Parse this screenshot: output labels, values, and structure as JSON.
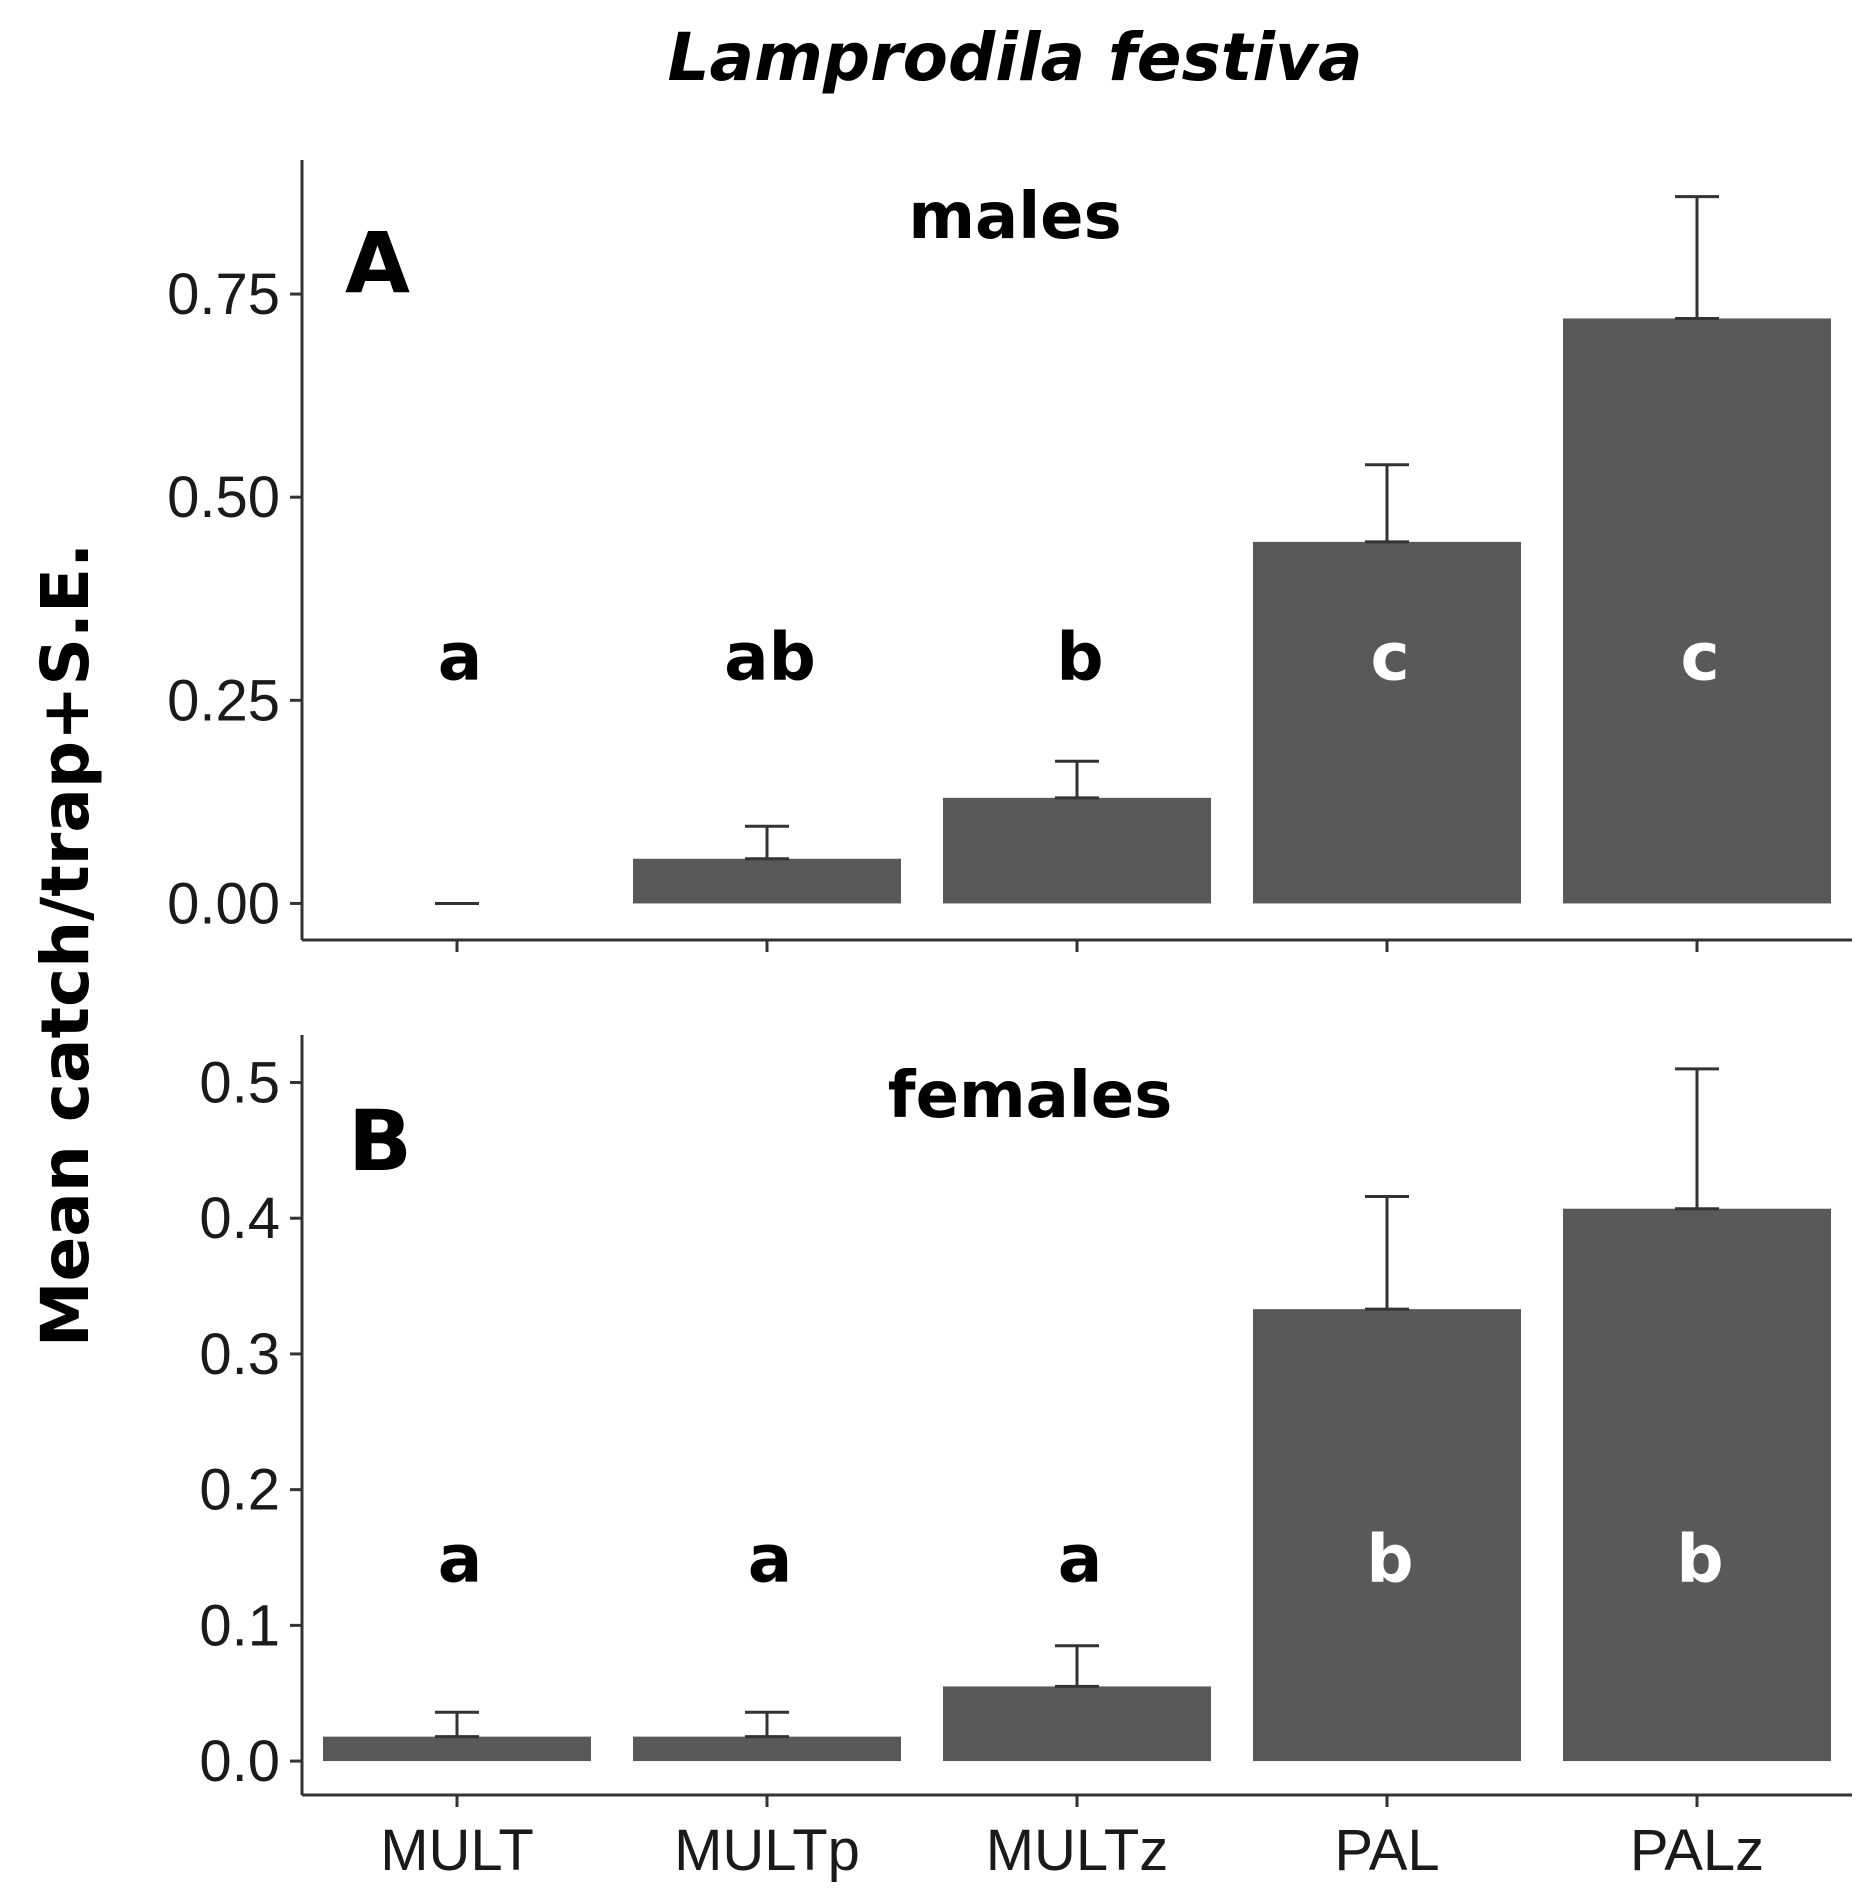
{
  "figure": {
    "title": "Lamprodila festiva",
    "ylabel": "Mean catch/trap+S.E."
  },
  "chart_data": [
    {
      "type": "bar",
      "panel_label": "A",
      "subtitle": "males",
      "categories": [
        "MULT",
        "MULTp",
        "MULTz",
        "PAL",
        "PALz"
      ],
      "values": [
        0.0,
        0.055,
        0.13,
        0.445,
        0.72
      ],
      "errors": [
        0.0,
        0.04,
        0.045,
        0.095,
        0.15
      ],
      "letters": [
        "a",
        "ab",
        "b",
        "c",
        "c"
      ],
      "letter_value": 0.305,
      "ylim": [
        -0.045,
        0.915
      ],
      "yticks": [
        0.0,
        0.25,
        0.5,
        0.75
      ],
      "ytick_labels": [
        "0.00",
        "0.25",
        "0.50",
        "0.75"
      ],
      "show_category_labels": false,
      "bar_color": "#595959"
    },
    {
      "type": "bar",
      "panel_label": "B",
      "subtitle": "females",
      "categories": [
        "MULT",
        "MULTp",
        "MULTz",
        "PAL",
        "PALz"
      ],
      "values": [
        0.018,
        0.018,
        0.055,
        0.333,
        0.407
      ],
      "errors": [
        0.018,
        0.018,
        0.03,
        0.083,
        0.103
      ],
      "letters": [
        "a",
        "a",
        "a",
        "b",
        "b"
      ],
      "letter_value": 0.15,
      "ylim": [
        -0.025,
        0.535
      ],
      "yticks": [
        0.0,
        0.1,
        0.2,
        0.3,
        0.4,
        0.5
      ],
      "ytick_labels": [
        "0.0",
        "0.1",
        "0.2",
        "0.3",
        "0.4",
        "0.5"
      ],
      "show_category_labels": true,
      "bar_color": "#595959"
    }
  ]
}
